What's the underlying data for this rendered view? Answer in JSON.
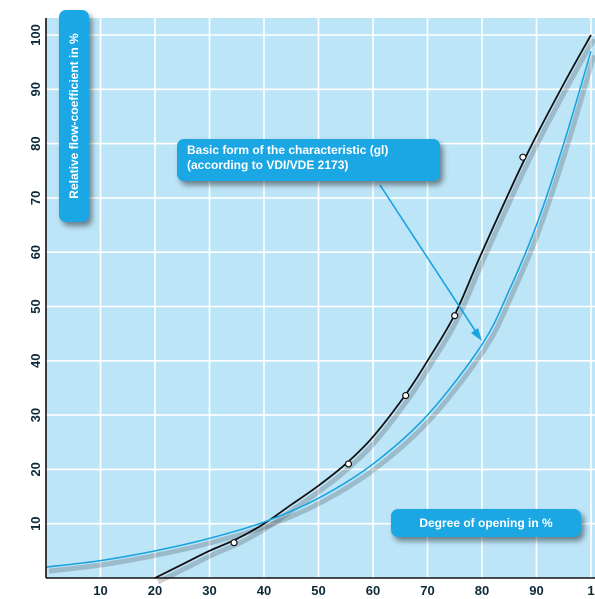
{
  "chart_data": {
    "type": "line",
    "xlabel": "Degree of opening in %",
    "ylabel": "Relative flow-coefficient in %",
    "x_ticks": [
      "10",
      "20",
      "30",
      "40",
      "50",
      "60",
      "70",
      "80",
      "90",
      "1"
    ],
    "y_ticks": [
      "10",
      "20",
      "30",
      "40",
      "50",
      "60",
      "70",
      "80",
      "90",
      "100"
    ],
    "xlim": [
      0,
      100
    ],
    "ylim": [
      0,
      100
    ],
    "grid": true,
    "background_color": "#bde5f8",
    "annotation": {
      "line1": "Basic form of the characteristic (gl)",
      "line2": "(according to VDI/VDE 2173)"
    },
    "series": [
      {
        "color": "#111111",
        "x": [
          20,
          25,
          30,
          35,
          40,
          45,
          50,
          55,
          60,
          66,
          70,
          75,
          80,
          88,
          95,
          100
        ],
        "y": [
          0,
          2.5,
          5,
          7.2,
          10,
          13.5,
          17,
          21,
          26,
          33.8,
          40,
          48.5,
          60,
          77.5,
          91,
          100
        ],
        "markers_x": [
          34.5,
          55.5,
          66,
          75,
          87.5
        ],
        "markers_y": [
          6.5,
          21,
          33.6,
          48.3,
          77.5
        ]
      },
      {
        "color": "#1aa3e0",
        "x": [
          0,
          10,
          20,
          30,
          40,
          50,
          60,
          70,
          80,
          85,
          90,
          95,
          100
        ],
        "y": [
          2,
          3.2,
          5,
          7.3,
          10.3,
          14.7,
          21,
          30,
          43,
          53,
          65,
          80,
          97
        ]
      }
    ]
  }
}
